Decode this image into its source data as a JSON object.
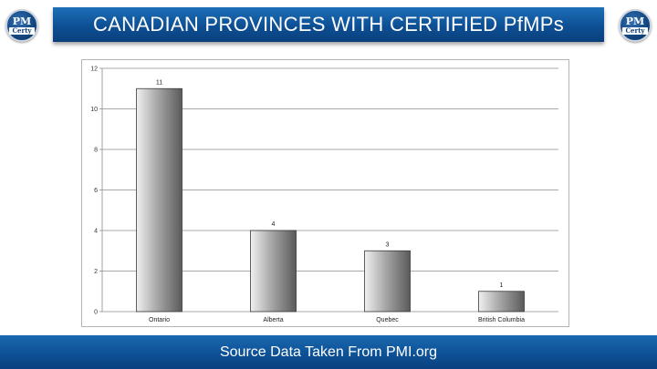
{
  "header": {
    "title": "CANADIAN PROVINCES WITH CERTIFIED PfMPs",
    "logo_top": "PM",
    "logo_bottom": "Certy"
  },
  "footer": {
    "text": "Source Data Taken From PMI.org"
  },
  "colors": {
    "brand_blue": "#0d4f94",
    "bar_light": "#e6e6e6",
    "bar_dark": "#5a5a5a"
  },
  "chart_data": {
    "type": "bar",
    "title": "",
    "xlabel": "",
    "ylabel": "",
    "categories": [
      "Ontario",
      "Alberta",
      "Quebec",
      "British Columbia"
    ],
    "values": [
      11,
      4,
      3,
      1
    ],
    "data_labels": [
      "11",
      "4",
      "3",
      "1"
    ],
    "ylim": [
      0,
      12
    ],
    "yticks": [
      0,
      2,
      4,
      6,
      8,
      10,
      12
    ],
    "grid": true,
    "legend": "none"
  }
}
